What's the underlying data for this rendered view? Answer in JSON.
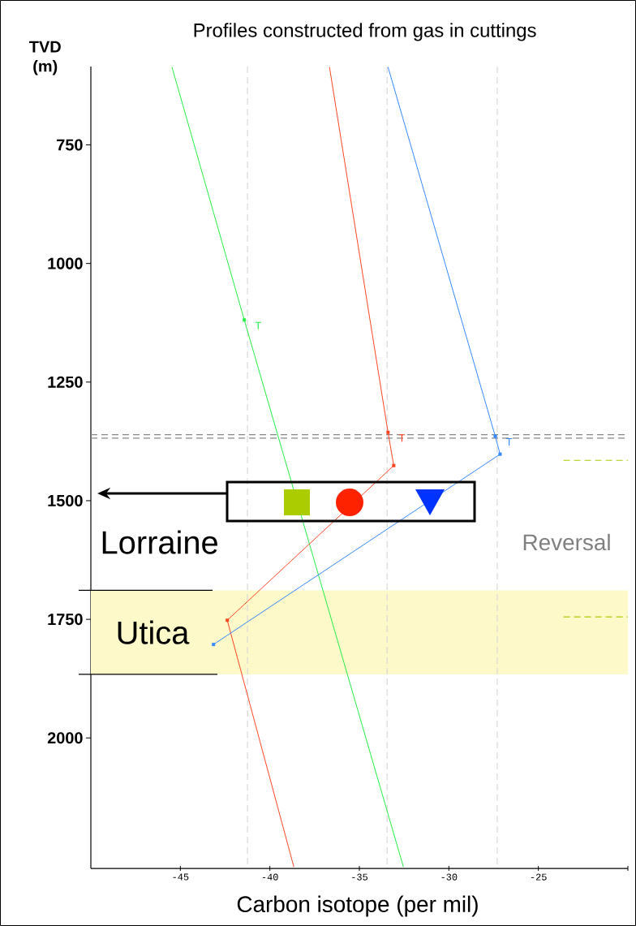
{
  "chart_data": {
    "type": "line",
    "title": "Profiles constructed from gas in cuttings",
    "xlabel": "Carbon isotope (per mil)",
    "ylabel": "TVD (m)",
    "xlim": [
      -50,
      -20
    ],
    "xticks": [
      -45,
      -40,
      -35,
      -30,
      -25,
      {
        "value": -20,
        "label": null
      }
    ],
    "ylim": [
      2275,
      585
    ],
    "yticks": [
      750,
      1000,
      1250,
      1500,
      1750,
      2000
    ],
    "marker": "none",
    "series": [
      {
        "color": "#22ee44",
        "x": [
          -45.47,
          -41.43,
          -32.54
        ],
        "values": [
          586,
          1119,
          2272
        ]
      },
      {
        "color": "#ff4422",
        "x": [
          -36.67,
          -33.4,
          -33.08,
          -42.38,
          -38.66
        ],
        "values": [
          586,
          1356,
          1426,
          1752,
          2272
        ]
      },
      {
        "color": "#3388ff",
        "x": [
          -33.4,
          -27.41,
          -27.14,
          -43.15
        ],
        "values": [
          586,
          1364,
          1402,
          1803
        ]
      },
      {
        "type": "scatter",
        "marker": "square",
        "color": "#22ee44",
        "x": [
          -41.43
        ],
        "values": [
          1119
        ]
      },
      {
        "type": "scatter",
        "marker": "square",
        "color": "#ff4422",
        "x": [
          -33.4,
          -33.08,
          -42.38
        ],
        "values": [
          1356,
          1426,
          1752
        ]
      },
      {
        "type": "scatter",
        "marker": "square",
        "color": "#3388ff",
        "x": [
          -27.41,
          -27.14,
          -43.15
        ],
        "values": [
          1364,
          1402,
          1803
        ]
      }
    ],
    "ref_lines": [
      {
        "axis": "x",
        "value": -41.25,
        "color": "#d8d8d8",
        "line_style": "dashed"
      },
      {
        "axis": "x",
        "value": -33.45,
        "color": "#d8d8d8",
        "line_style": "dashed"
      },
      {
        "axis": "x",
        "value": -27.3,
        "color": "#d8d8d8",
        "line_style": "dashed"
      },
      {
        "axis": "y",
        "value": 1361,
        "color": "#888888",
        "line_style": "dashed"
      },
      {
        "axis": "y",
        "value": 1368,
        "color": "#888888",
        "line_style": "dashed"
      },
      {
        "axis": "y",
        "value": 1415,
        "color": "#aacc00",
        "line_style": "dashed"
      },
      {
        "axis": "y",
        "value": 1745,
        "color": "#aacc00",
        "line_style": "dashed"
      }
    ],
    "bands": [
      {
        "axis": "y",
        "from": 1689,
        "to": 1866,
        "label": "Utica",
        "color": "#fdf9c8"
      }
    ],
    "annotations": [
      {
        "text": "T",
        "x": -41.43,
        "y": 1119
      },
      {
        "text": "T",
        "x": -33.4,
        "y": 1356
      },
      {
        "text": "T",
        "x": -27.41,
        "y": 1364
      },
      "Lorraine",
      "Reversal"
    ]
  }
}
